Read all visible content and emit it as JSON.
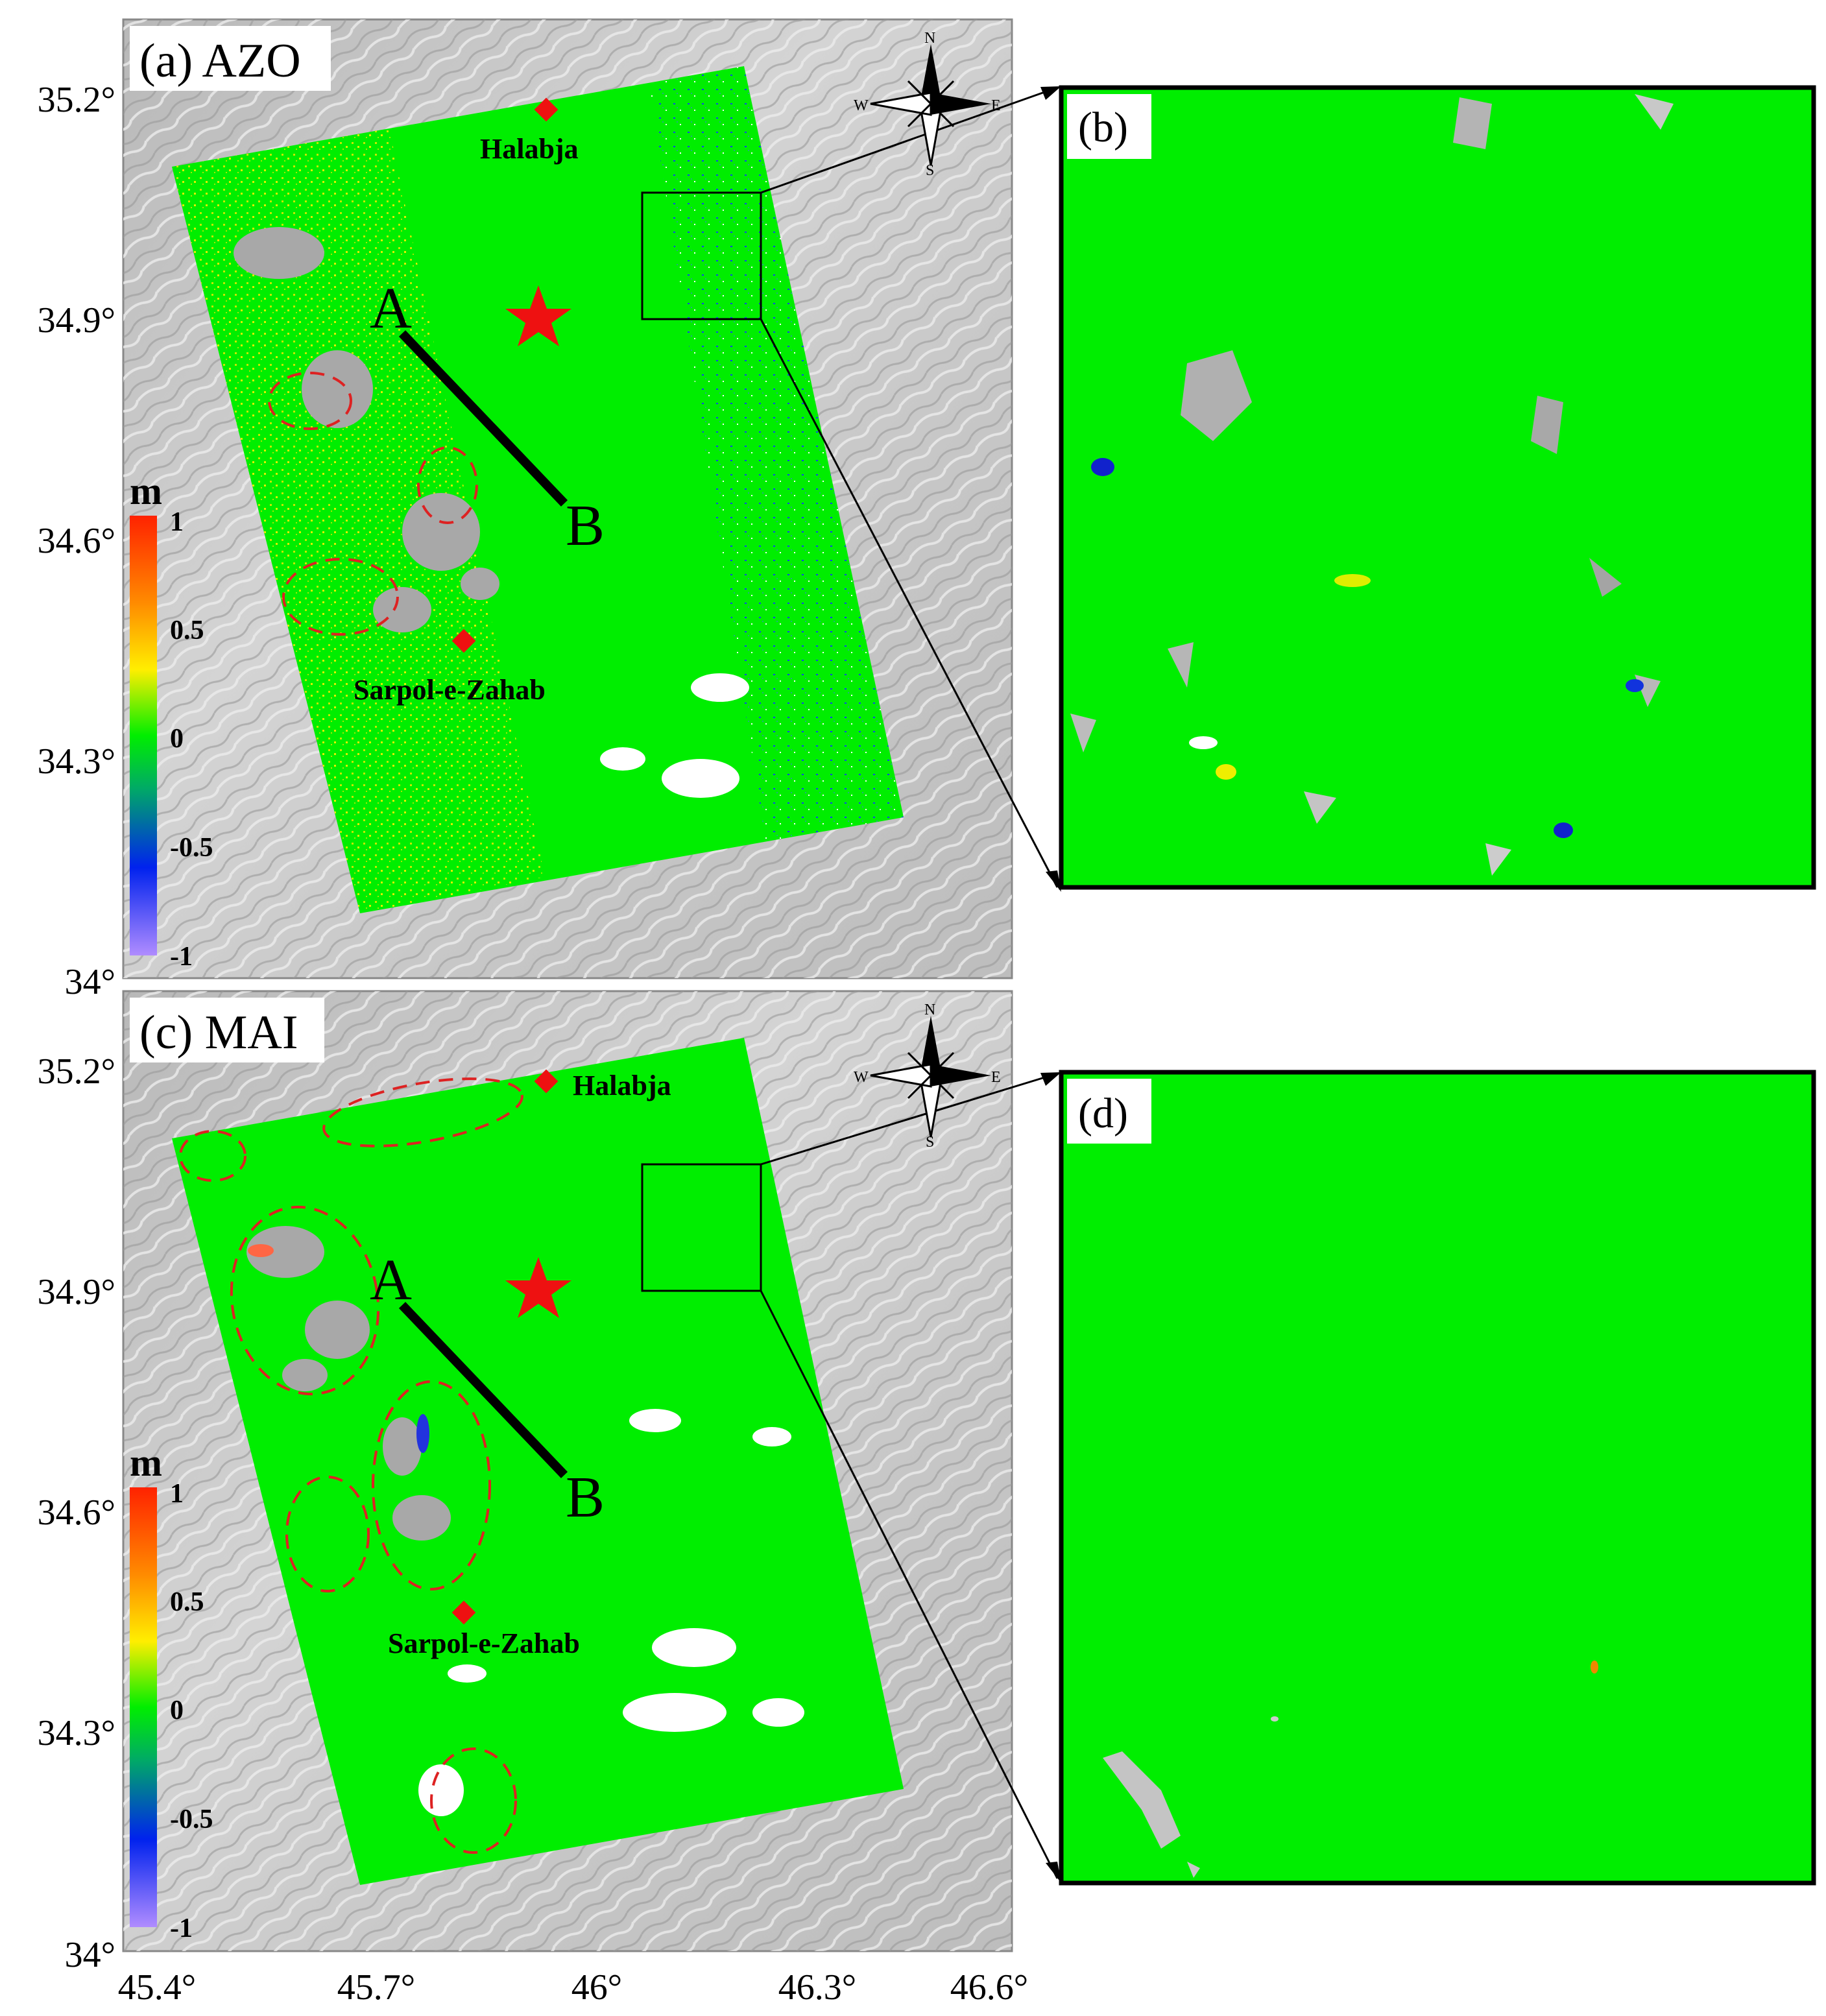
{
  "figure": {
    "panels": [
      {
        "id": "a",
        "label": "(a) AZO",
        "cities": [
          "Halabja",
          "Sarpol-e-Zahab"
        ],
        "profile_start": "A",
        "profile_end": "B",
        "colorbar": {
          "unit": "m",
          "ticks": [
            "1",
            "0.5",
            "0",
            "-0.5",
            "-1"
          ]
        },
        "compass": {
          "n": "N",
          "s": "S",
          "e": "E",
          "w": "W"
        },
        "y_ticks": [
          "35.2°",
          "34.9°",
          "34.6°",
          "34.3°",
          "34°"
        ]
      },
      {
        "id": "c",
        "label": "(c) MAI",
        "cities": [
          "Halabja",
          "Sarpol-e-Zahab"
        ],
        "profile_start": "A",
        "profile_end": "B",
        "colorbar": {
          "unit": "m",
          "ticks": [
            "1",
            "0.5",
            "0",
            "-0.5",
            "-1"
          ]
        },
        "compass": {
          "n": "N",
          "s": "S",
          "e": "E",
          "w": "W"
        },
        "y_ticks": [
          "35.2°",
          "34.9°",
          "34.6°",
          "34.3°",
          "34°"
        ]
      }
    ],
    "zoom_panels": [
      {
        "id": "b",
        "label": "(b)"
      },
      {
        "id": "d",
        "label": "(d)"
      }
    ],
    "x_ticks": [
      "45.4°",
      "45.7°",
      "46°",
      "46.3°",
      "46.6°"
    ],
    "colors": {
      "displacement_zero": "#00ee00",
      "no_data": "#a8a8a8",
      "marker": "#ee1111",
      "outline": "#000000",
      "highlight_circle": "#dd2222"
    }
  }
}
